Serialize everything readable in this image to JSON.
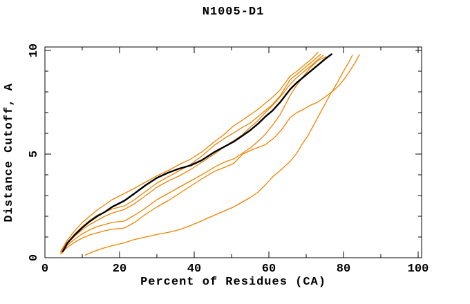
{
  "background": "#ffffff",
  "chart_data": {
    "type": "line",
    "title": "N1005-D1",
    "xlabel": "Percent of Residues (CA)",
    "ylabel": "Distance Cutoff, A",
    "xlim": [
      0,
      100.93
    ],
    "ylim": [
      0,
      10.17
    ],
    "grid": false,
    "legend": "none",
    "frame": "box-with-inward-ticks",
    "axis_color": "#000000",
    "x_major_ticks": [
      0,
      20,
      40,
      60,
      80,
      100
    ],
    "x_minor_ticks": [
      10,
      30,
      50,
      70,
      90
    ],
    "y_major_ticks": [
      0,
      5,
      10
    ],
    "y_minor_ticks": [
      1,
      2,
      3,
      4,
      6,
      7,
      8,
      9
    ],
    "colors": {
      "model_curve": "#000000",
      "reference_curves": "#ef8200"
    },
    "series": [
      {
        "name": "orange-curve-1",
        "color": "#ef8200",
        "width": 1.3,
        "points": [
          [
            4.2,
            0.3
          ],
          [
            6,
            0.85
          ],
          [
            8,
            1.3
          ],
          [
            10,
            1.7
          ],
          [
            12,
            2.0
          ],
          [
            14,
            2.3
          ],
          [
            16,
            2.55
          ],
          [
            18,
            2.8
          ],
          [
            21.3,
            3.1
          ],
          [
            24,
            3.35
          ],
          [
            27,
            3.65
          ],
          [
            30,
            3.95
          ],
          [
            33,
            4.2
          ],
          [
            36,
            4.5
          ],
          [
            39,
            4.75
          ],
          [
            42,
            5.1
          ],
          [
            45.4,
            5.6
          ],
          [
            48,
            5.95
          ],
          [
            50.6,
            6.37
          ],
          [
            53,
            6.65
          ],
          [
            55,
            6.9
          ],
          [
            57,
            7.15
          ],
          [
            59,
            7.45
          ],
          [
            61,
            7.75
          ],
          [
            63,
            8.1
          ],
          [
            65.7,
            8.77
          ],
          [
            67.5,
            9.0
          ],
          [
            69.5,
            9.3
          ],
          [
            71.5,
            9.6
          ],
          [
            73.2,
            9.92
          ]
        ]
      },
      {
        "name": "orange-curve-2",
        "color": "#ef8200",
        "width": 1.3,
        "points": [
          [
            4.3,
            0.25
          ],
          [
            6,
            0.75
          ],
          [
            8,
            1.15
          ],
          [
            10,
            1.5
          ],
          [
            12,
            1.8
          ],
          [
            14,
            2.05
          ],
          [
            16,
            2.2
          ],
          [
            18,
            2.35
          ],
          [
            21.3,
            2.5
          ],
          [
            24,
            2.8
          ],
          [
            27,
            3.2
          ],
          [
            30,
            3.6
          ],
          [
            33,
            3.9
          ],
          [
            36,
            4.2
          ],
          [
            39,
            4.5
          ],
          [
            42,
            4.9
          ],
          [
            45.4,
            5.43
          ],
          [
            48,
            5.75
          ],
          [
            50.6,
            6.03
          ],
          [
            53,
            6.3
          ],
          [
            55,
            6.5
          ],
          [
            57,
            6.8
          ],
          [
            59,
            7.1
          ],
          [
            61,
            7.4
          ],
          [
            63,
            7.8
          ],
          [
            65.7,
            8.6
          ],
          [
            67.5,
            8.85
          ],
          [
            69.5,
            9.15
          ],
          [
            71.5,
            9.45
          ],
          [
            73.9,
            9.82
          ]
        ]
      },
      {
        "name": "orange-curve-3",
        "color": "#ef8200",
        "width": 1.3,
        "points": [
          [
            4.5,
            0.25
          ],
          [
            6,
            0.7
          ],
          [
            8,
            1.05
          ],
          [
            10,
            1.35
          ],
          [
            12,
            1.6
          ],
          [
            14,
            1.8
          ],
          [
            16,
            2.0
          ],
          [
            18,
            2.15
          ],
          [
            21.3,
            2.33
          ],
          [
            24,
            2.6
          ],
          [
            27,
            3.0
          ],
          [
            30,
            3.4
          ],
          [
            33,
            3.7
          ],
          [
            36,
            3.95
          ],
          [
            39,
            4.25
          ],
          [
            42,
            4.6
          ],
          [
            45.4,
            5.0
          ],
          [
            48,
            5.35
          ],
          [
            50.6,
            5.65
          ],
          [
            53,
            5.95
          ],
          [
            55,
            6.3
          ],
          [
            57,
            6.6
          ],
          [
            59,
            7.0
          ],
          [
            61,
            7.35
          ],
          [
            63,
            7.75
          ],
          [
            65.7,
            8.37
          ],
          [
            67.5,
            8.7
          ],
          [
            69.5,
            9.0
          ],
          [
            71.5,
            9.3
          ],
          [
            74.6,
            9.78
          ]
        ]
      },
      {
        "name": "orange-curve-4",
        "color": "#ef8200",
        "width": 1.3,
        "points": [
          [
            4.5,
            0.2
          ],
          [
            6,
            0.6
          ],
          [
            8,
            0.9
          ],
          [
            10,
            1.15
          ],
          [
            12,
            1.35
          ],
          [
            14,
            1.5
          ],
          [
            16,
            1.6
          ],
          [
            18,
            1.7
          ],
          [
            21.3,
            1.77
          ],
          [
            24,
            2.05
          ],
          [
            27,
            2.4
          ],
          [
            30,
            2.8
          ],
          [
            33,
            3.1
          ],
          [
            36,
            3.4
          ],
          [
            39,
            3.7
          ],
          [
            42,
            4.0
          ],
          [
            45.4,
            4.37
          ],
          [
            48,
            4.6
          ],
          [
            50.6,
            4.77
          ],
          [
            53,
            5.05
          ],
          [
            55,
            5.3
          ],
          [
            57,
            5.6
          ],
          [
            59,
            5.95
          ],
          [
            61,
            6.4
          ],
          [
            63,
            6.9
          ],
          [
            65.7,
            7.83
          ],
          [
            67,
            8.2
          ],
          [
            69,
            8.7
          ],
          [
            71,
            9.15
          ],
          [
            73,
            9.5
          ],
          [
            75.3,
            9.7
          ]
        ]
      },
      {
        "name": "orange-curve-5",
        "color": "#ef8200",
        "width": 1.3,
        "points": [
          [
            4.2,
            0.2
          ],
          [
            6,
            0.5
          ],
          [
            8,
            0.75
          ],
          [
            10,
            0.95
          ],
          [
            12,
            1.1
          ],
          [
            14,
            1.2
          ],
          [
            16,
            1.3
          ],
          [
            18,
            1.37
          ],
          [
            21.3,
            1.43
          ],
          [
            24,
            1.7
          ],
          [
            27,
            2.1
          ],
          [
            30,
            2.45
          ],
          [
            33,
            2.75
          ],
          [
            36,
            3.1
          ],
          [
            39,
            3.45
          ],
          [
            42,
            3.8
          ],
          [
            45.4,
            4.17
          ],
          [
            48,
            4.35
          ],
          [
            50.6,
            4.55
          ],
          [
            53,
            5.0
          ],
          [
            56,
            5.25
          ],
          [
            59,
            5.45
          ],
          [
            61.5,
            5.8
          ],
          [
            63.5,
            6.2
          ],
          [
            65.7,
            6.77
          ],
          [
            67.5,
            7.0
          ],
          [
            69.4,
            7.17
          ],
          [
            71,
            7.35
          ],
          [
            73,
            7.5
          ],
          [
            75,
            7.75
          ],
          [
            77.2,
            8.05
          ],
          [
            79,
            8.35
          ],
          [
            80.5,
            8.7
          ],
          [
            82,
            9.1
          ],
          [
            83.2,
            9.45
          ],
          [
            84.3,
            9.8
          ]
        ]
      },
      {
        "name": "orange-curve-6",
        "color": "#ef8200",
        "width": 1.3,
        "points": [
          [
            10.8,
            0.12
          ],
          [
            13,
            0.3
          ],
          [
            16,
            0.48
          ],
          [
            18,
            0.58
          ],
          [
            21.3,
            0.72
          ],
          [
            24,
            0.88
          ],
          [
            27,
            1.0
          ],
          [
            30,
            1.12
          ],
          [
            33,
            1.22
          ],
          [
            36,
            1.35
          ],
          [
            39,
            1.55
          ],
          [
            42,
            1.78
          ],
          [
            45.4,
            2.05
          ],
          [
            48,
            2.25
          ],
          [
            50.6,
            2.45
          ],
          [
            53,
            2.7
          ],
          [
            55,
            2.9
          ],
          [
            57,
            3.15
          ],
          [
            59,
            3.5
          ],
          [
            61,
            3.9
          ],
          [
            63,
            4.2
          ],
          [
            65.7,
            4.65
          ],
          [
            67.5,
            5.05
          ],
          [
            69,
            5.5
          ],
          [
            70.5,
            5.9
          ],
          [
            72,
            6.4
          ],
          [
            73.5,
            6.9
          ],
          [
            75,
            7.4
          ],
          [
            76.2,
            7.8
          ],
          [
            77.2,
            8.1
          ],
          [
            78.5,
            8.5
          ],
          [
            80,
            9.0
          ],
          [
            81.3,
            9.4
          ],
          [
            82.4,
            9.77
          ]
        ]
      },
      {
        "name": "black-model-curve",
        "color": "#000000",
        "width": 2.4,
        "points": [
          [
            4.8,
            0.3
          ],
          [
            6,
            0.7
          ],
          [
            8,
            1.1
          ],
          [
            10,
            1.45
          ],
          [
            12,
            1.75
          ],
          [
            14,
            2.0
          ],
          [
            16,
            2.2
          ],
          [
            18,
            2.45
          ],
          [
            21.3,
            2.75
          ],
          [
            24,
            3.1
          ],
          [
            27,
            3.5
          ],
          [
            30,
            3.85
          ],
          [
            33,
            4.1
          ],
          [
            36,
            4.3
          ],
          [
            39,
            4.45
          ],
          [
            42,
            4.7
          ],
          [
            45.4,
            5.1
          ],
          [
            48,
            5.35
          ],
          [
            50.6,
            5.6
          ],
          [
            53,
            5.9
          ],
          [
            55,
            6.15
          ],
          [
            57,
            6.45
          ],
          [
            59,
            6.8
          ],
          [
            61,
            7.1
          ],
          [
            63,
            7.5
          ],
          [
            65.7,
            8.13
          ],
          [
            67.5,
            8.45
          ],
          [
            69.5,
            8.75
          ],
          [
            71.5,
            9.05
          ],
          [
            73.5,
            9.35
          ],
          [
            75.5,
            9.65
          ],
          [
            76.8,
            9.82
          ]
        ]
      }
    ]
  }
}
